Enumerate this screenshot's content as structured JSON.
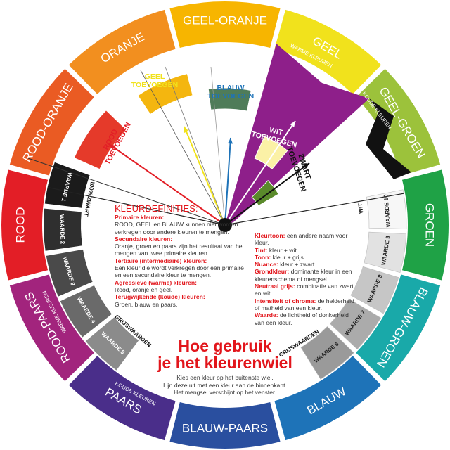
{
  "wheel": {
    "segments": [
      {
        "label": "GEEL-ORANJE",
        "color": "#f7b500"
      },
      {
        "label": "GEEL",
        "color": "#f1e21c"
      },
      {
        "label": "GEEL-GROEN",
        "color": "#9cc23b"
      },
      {
        "label": "GROEN",
        "color": "#1fa246"
      },
      {
        "label": "BLAUW-GROEN",
        "color": "#19a9a9"
      },
      {
        "label": "BLAUW",
        "color": "#1e73b8"
      },
      {
        "label": "BLAUW-PAARS",
        "color": "#2a4f9f"
      },
      {
        "label": "PAARS",
        "color": "#4a2e8a"
      },
      {
        "label": "ROOD-PAARS",
        "color": "#a2247d"
      },
      {
        "label": "ROOD",
        "color": "#e31e26"
      },
      {
        "label": "ROOD-ORANJE",
        "color": "#ea5b23"
      },
      {
        "label": "ORANJE",
        "color": "#f28f1f"
      }
    ],
    "warm_label": "WARME KLEUREN",
    "cool_label": "KOUDE KLEUREN",
    "warm_label_2": "WARME KLEUREN",
    "cool_label_2": "KOUDE KLEUREN"
  },
  "grey_values": {
    "left": [
      {
        "label": "WAARDE 1",
        "color": "#1b1b1b"
      },
      {
        "label": "WAARDE 2",
        "color": "#2f2f2f"
      },
      {
        "label": "WAARDE 3",
        "color": "#4a4a4a"
      },
      {
        "label": "WAARDE 4",
        "color": "#6a6a6a"
      },
      {
        "label": "WAARDE 5",
        "color": "#8b8b8b"
      }
    ],
    "right": [
      {
        "label": "WAARDE 10",
        "color": "#f7f7f7"
      },
      {
        "label": "WAARDE 9",
        "color": "#e2e2e2"
      },
      {
        "label": "WAARDE 8",
        "color": "#c6c6c6"
      },
      {
        "label": "WAARDE 7",
        "color": "#ababab"
      },
      {
        "label": "WAARDE 6",
        "color": "#9a9a9a"
      }
    ],
    "group_label_left": "GRIJSWAARDEN",
    "group_label_right": "GRIJSWAARDEN",
    "black_label": "100% ZWART",
    "white_label": "WIT"
  },
  "additions": {
    "rood": {
      "line1": "ROOD",
      "line2": "TOEVOEGEN",
      "color": "#e31e26",
      "swatch": "#e53a2a"
    },
    "geel": {
      "line1": "GEEL",
      "line2": "TOEVOEGEN",
      "color": "#f1e21c",
      "swatch": "#f4b60f"
    },
    "blauw": {
      "line1": "BLAUW",
      "line2": "TOEVOEGEN",
      "color": "#1e73b8",
      "swatch": "#4f7c59"
    },
    "wit": {
      "line1": "WIT",
      "line2": "TOEVOEGEN",
      "color": "#ffffff",
      "swatch": "#fbf1a6"
    },
    "zwart": {
      "line1": "ZWART",
      "line2": "TOEVOEGEN",
      "color": "#111111",
      "swatch": "#5a8a2b"
    },
    "window_color": "#8e1f8a"
  },
  "definitions": {
    "title": "KLEURDEFINITIES:",
    "left": [
      {
        "term": "Primaire kleuren:",
        "text": "ROOD, GEEL en BLAUW kunnen niet worden verkregen door andere kleuren te mengen."
      },
      {
        "term": "Secundaire kleuren:",
        "text": "Oranje, groen en paars zijn het resultaat van het mengen van twee primaire kleuren."
      },
      {
        "term": "Tertiaire (intermediaire) kleuren:",
        "text": "Een kleur die wordt verkregen door een primaire en een secundaire kleur te mengen."
      },
      {
        "term": "Agressieve (warme) kleuren:",
        "text": "Rood, oranje en geel."
      },
      {
        "term": "Terugwijkende (koude) kleuren:",
        "text": "Groen, blauw en paars."
      }
    ],
    "right": [
      {
        "term": "Kleurtoon:",
        "text": "een andere naam voor kleur."
      },
      {
        "term": "Tint:",
        "text": "kleur + wit"
      },
      {
        "term": "Toon:",
        "text": "kleur + grijs"
      },
      {
        "term": "Nuance:",
        "text": "kleur + zwart"
      },
      {
        "term": "Grondkleur:",
        "text": "dominante kleur in een kleurenschema of mengsel."
      },
      {
        "term": "Neutraal grijs:",
        "text": "combinatie van zwart en wit."
      },
      {
        "term": "Intensiteit of chroma:",
        "text": "de helderheid of matheid van een kleur."
      },
      {
        "term": "Waarde:",
        "text": "de lichtheid of donkerheid van een kleur."
      }
    ]
  },
  "howto": {
    "title_line1": "Hoe gebruik",
    "title_line2": "je het kleurenwiel",
    "instructions": [
      "Kies een kleur op het buitenste wiel.",
      "Lijn deze uit met een kleur aan de binnenkant.",
      "Het mengsel verschijnt op het venster."
    ]
  }
}
